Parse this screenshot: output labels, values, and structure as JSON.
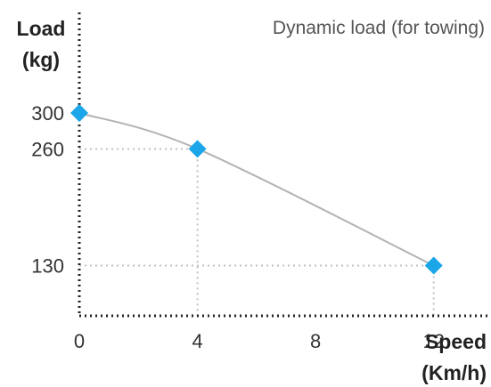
{
  "chart_data": {
    "type": "line",
    "title": "",
    "subtitle": "Dynamic load (for towing)",
    "xlabel": [
      "Speed",
      "(Km/h)"
    ],
    "ylabel": [
      "Load",
      "(kg)"
    ],
    "x": [
      0,
      4,
      12
    ],
    "series": [
      {
        "values": [
          300,
          260,
          130
        ]
      }
    ],
    "x_ticks": [
      "0",
      "4",
      "8",
      "12"
    ],
    "y_ticks": [
      "300",
      "260",
      "130"
    ],
    "xlim": [
      0,
      14
    ],
    "ylim": [
      74,
      300
    ],
    "grid": false,
    "legend": "none",
    "marker": "diamond",
    "colors": {
      "curve": "#b3b3b3",
      "marker": "#1aa6e8",
      "axis": "#222222",
      "guide": "#c0c0c0"
    }
  }
}
